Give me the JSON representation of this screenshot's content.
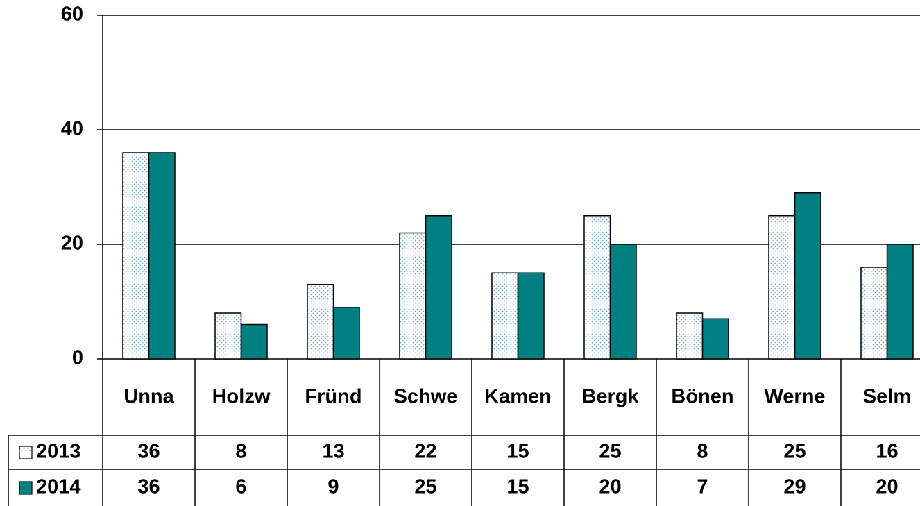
{
  "chart_data": {
    "type": "bar",
    "categories": [
      "Unna",
      "Holzw",
      "Fründ",
      "Schwe",
      "Kamen",
      "Bergk",
      "Bönen",
      "Werne",
      "Selm"
    ],
    "series": [
      {
        "name": "2013",
        "color": "#6fa8dc",
        "values": [
          36,
          8,
          13,
          22,
          15,
          25,
          8,
          25,
          16
        ]
      },
      {
        "name": "2014",
        "color": "#008080",
        "values": [
          36,
          6,
          9,
          25,
          15,
          20,
          7,
          29,
          20
        ]
      }
    ],
    "ylim": [
      0,
      60
    ],
    "yticks": [
      0,
      20,
      40,
      60
    ],
    "grid": true
  }
}
